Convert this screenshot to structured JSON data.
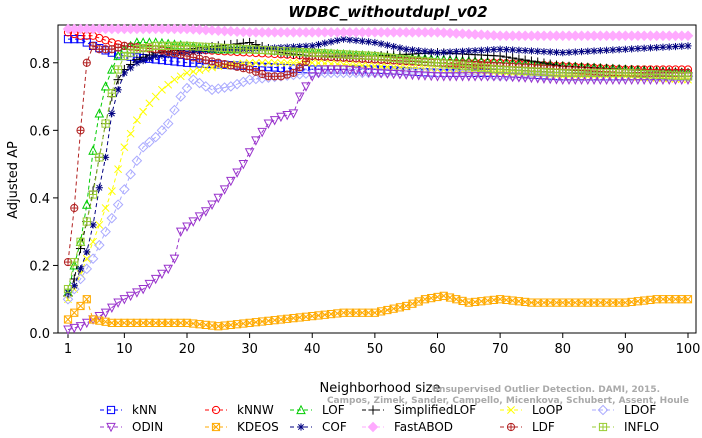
{
  "chart_data": {
    "type": "line",
    "title": "WDBC_withoutdupl_v02",
    "xlabel": "Neighborhood size",
    "ylabel": "Adjusted AP",
    "xlim": [
      1,
      100
    ],
    "ylim": [
      0,
      0.9
    ],
    "xticks": [
      1,
      10,
      20,
      30,
      40,
      50,
      60,
      70,
      80,
      90,
      100
    ],
    "yticks": [
      0.0,
      0.2,
      0.4,
      0.6,
      0.8
    ],
    "ytick_labels": [
      "0.0",
      "0.2",
      "0.4",
      "0.6",
      "0.8"
    ],
    "grid": false,
    "legend_position": "bottom",
    "watermark": [
      "Unsupervised Outlier Detection. DAMI, 2015.",
      "Campos, Zimek, Sander, Campello, Micenkova, Schubert, Assent, Houle"
    ],
    "series": [
      {
        "name": "kNN",
        "color": "#0000ff",
        "marker": "square",
        "dash": "4,3",
        "points": [
          [
            1,
            0.87
          ],
          [
            3,
            0.87
          ],
          [
            5,
            0.85
          ],
          [
            8,
            0.83
          ],
          [
            10,
            0.82
          ],
          [
            15,
            0.81
          ],
          [
            20,
            0.8
          ],
          [
            30,
            0.79
          ],
          [
            40,
            0.78
          ],
          [
            50,
            0.78
          ],
          [
            60,
            0.77
          ],
          [
            70,
            0.77
          ],
          [
            80,
            0.76
          ],
          [
            90,
            0.76
          ],
          [
            100,
            0.76
          ]
        ]
      },
      {
        "name": "kNNW",
        "color": "#ff0000",
        "marker": "circle",
        "dash": "4,3",
        "points": [
          [
            1,
            0.89
          ],
          [
            3,
            0.88
          ],
          [
            5,
            0.88
          ],
          [
            8,
            0.86
          ],
          [
            10,
            0.85
          ],
          [
            15,
            0.84
          ],
          [
            20,
            0.84
          ],
          [
            30,
            0.83
          ],
          [
            40,
            0.82
          ],
          [
            50,
            0.81
          ],
          [
            60,
            0.8
          ],
          [
            70,
            0.8
          ],
          [
            80,
            0.79
          ],
          [
            90,
            0.78
          ],
          [
            100,
            0.78
          ]
        ]
      },
      {
        "name": "LOF",
        "color": "#00cc00",
        "marker": "triangle",
        "dash": "4,3",
        "points": [
          [
            1,
            0.12
          ],
          [
            2,
            0.2
          ],
          [
            3,
            0.27
          ],
          [
            4,
            0.38
          ],
          [
            5,
            0.54
          ],
          [
            6,
            0.65
          ],
          [
            7,
            0.73
          ],
          [
            8,
            0.78
          ],
          [
            9,
            0.82
          ],
          [
            10,
            0.84
          ],
          [
            12,
            0.86
          ],
          [
            15,
            0.86
          ],
          [
            20,
            0.85
          ],
          [
            25,
            0.84
          ],
          [
            30,
            0.84
          ],
          [
            40,
            0.83
          ],
          [
            50,
            0.82
          ],
          [
            60,
            0.81
          ],
          [
            70,
            0.8
          ],
          [
            80,
            0.79
          ],
          [
            90,
            0.78
          ],
          [
            100,
            0.77
          ]
        ]
      },
      {
        "name": "SimplifiedLOF",
        "color": "#000000",
        "marker": "plus",
        "dash": "4,3",
        "points": [
          [
            1,
            0.11
          ],
          [
            2,
            0.16
          ],
          [
            3,
            0.25
          ],
          [
            4,
            0.33
          ],
          [
            5,
            0.42
          ],
          [
            6,
            0.52
          ],
          [
            7,
            0.62
          ],
          [
            8,
            0.7
          ],
          [
            9,
            0.75
          ],
          [
            10,
            0.78
          ],
          [
            12,
            0.81
          ],
          [
            15,
            0.83
          ],
          [
            20,
            0.84
          ],
          [
            25,
            0.85
          ],
          [
            30,
            0.86
          ],
          [
            35,
            0.83
          ],
          [
            40,
            0.82
          ],
          [
            50,
            0.82
          ],
          [
            60,
            0.83
          ],
          [
            70,
            0.82
          ],
          [
            80,
            0.79
          ],
          [
            90,
            0.78
          ],
          [
            100,
            0.77
          ]
        ]
      },
      {
        "name": "LoOP",
        "color": "#ffff00",
        "marker": "x",
        "dash": "4,3",
        "points": [
          [
            1,
            0.1
          ],
          [
            2,
            0.13
          ],
          [
            4,
            0.22
          ],
          [
            6,
            0.32
          ],
          [
            8,
            0.42
          ],
          [
            10,
            0.55
          ],
          [
            12,
            0.63
          ],
          [
            14,
            0.68
          ],
          [
            16,
            0.72
          ],
          [
            18,
            0.75
          ],
          [
            20,
            0.77
          ],
          [
            25,
            0.79
          ],
          [
            30,
            0.8
          ],
          [
            40,
            0.8
          ],
          [
            50,
            0.79
          ],
          [
            60,
            0.78
          ],
          [
            70,
            0.77
          ],
          [
            80,
            0.76
          ],
          [
            90,
            0.76
          ],
          [
            100,
            0.75
          ]
        ]
      },
      {
        "name": "LDOF",
        "color": "#aaaaff",
        "marker": "diamond",
        "dash": "4,3",
        "points": [
          [
            1,
            0.1
          ],
          [
            3,
            0.16
          ],
          [
            5,
            0.22
          ],
          [
            7,
            0.3
          ],
          [
            9,
            0.38
          ],
          [
            11,
            0.47
          ],
          [
            13,
            0.55
          ],
          [
            15,
            0.58
          ],
          [
            17,
            0.62
          ],
          [
            19,
            0.7
          ],
          [
            21,
            0.75
          ],
          [
            24,
            0.72
          ],
          [
            27,
            0.73
          ],
          [
            30,
            0.75
          ],
          [
            35,
            0.76
          ],
          [
            40,
            0.77
          ],
          [
            50,
            0.77
          ],
          [
            60,
            0.77
          ],
          [
            70,
            0.76
          ],
          [
            80,
            0.76
          ],
          [
            90,
            0.76
          ],
          [
            100,
            0.76
          ]
        ]
      },
      {
        "name": "ODIN",
        "color": "#9933cc",
        "marker": "triangle-down",
        "dash": "4,3",
        "points": [
          [
            1,
            0.01
          ],
          [
            3,
            0.02
          ],
          [
            5,
            0.04
          ],
          [
            7,
            0.06
          ],
          [
            9,
            0.09
          ],
          [
            11,
            0.11
          ],
          [
            13,
            0.13
          ],
          [
            15,
            0.16
          ],
          [
            17,
            0.19
          ],
          [
            18,
            0.22
          ],
          [
            19,
            0.3
          ],
          [
            21,
            0.33
          ],
          [
            23,
            0.36
          ],
          [
            25,
            0.4
          ],
          [
            27,
            0.45
          ],
          [
            29,
            0.5
          ],
          [
            31,
            0.57
          ],
          [
            33,
            0.62
          ],
          [
            35,
            0.64
          ],
          [
            37,
            0.65
          ],
          [
            38,
            0.7
          ],
          [
            40,
            0.76
          ],
          [
            42,
            0.78
          ],
          [
            45,
            0.78
          ],
          [
            50,
            0.77
          ],
          [
            60,
            0.76
          ],
          [
            70,
            0.76
          ],
          [
            80,
            0.75
          ],
          [
            90,
            0.75
          ],
          [
            100,
            0.75
          ]
        ]
      },
      {
        "name": "KDEOS",
        "color": "#ffaa00",
        "marker": "square-x",
        "dash": "4,3",
        "points": [
          [
            1,
            0.04
          ],
          [
            3,
            0.08
          ],
          [
            4,
            0.1
          ],
          [
            5,
            0.04
          ],
          [
            8,
            0.03
          ],
          [
            10,
            0.03
          ],
          [
            15,
            0.03
          ],
          [
            20,
            0.03
          ],
          [
            25,
            0.02
          ],
          [
            30,
            0.03
          ],
          [
            35,
            0.04
          ],
          [
            40,
            0.05
          ],
          [
            45,
            0.06
          ],
          [
            50,
            0.06
          ],
          [
            55,
            0.08
          ],
          [
            58,
            0.1
          ],
          [
            61,
            0.11
          ],
          [
            63,
            0.1
          ],
          [
            65,
            0.09
          ],
          [
            70,
            0.1
          ],
          [
            75,
            0.09
          ],
          [
            80,
            0.09
          ],
          [
            85,
            0.09
          ],
          [
            90,
            0.09
          ],
          [
            95,
            0.1
          ],
          [
            100,
            0.1
          ]
        ]
      },
      {
        "name": "COF",
        "color": "#000080",
        "marker": "asterisk",
        "dash": "4,3",
        "points": [
          [
            1,
            0.12
          ],
          [
            2,
            0.14
          ],
          [
            3,
            0.19
          ],
          [
            4,
            0.24
          ],
          [
            5,
            0.32
          ],
          [
            6,
            0.43
          ],
          [
            7,
            0.52
          ],
          [
            8,
            0.65
          ],
          [
            9,
            0.72
          ],
          [
            10,
            0.77
          ],
          [
            12,
            0.8
          ],
          [
            15,
            0.82
          ],
          [
            20,
            0.83
          ],
          [
            25,
            0.84
          ],
          [
            30,
            0.84
          ],
          [
            40,
            0.85
          ],
          [
            45,
            0.87
          ],
          [
            50,
            0.86
          ],
          [
            55,
            0.84
          ],
          [
            60,
            0.83
          ],
          [
            70,
            0.84
          ],
          [
            80,
            0.83
          ],
          [
            90,
            0.84
          ],
          [
            100,
            0.85
          ]
        ]
      },
      {
        "name": "FastABOD",
        "color": "#ffaaff",
        "marker": "diamond-filled",
        "dash": "4,3",
        "points": [
          [
            1,
            0.9
          ],
          [
            10,
            0.9
          ],
          [
            20,
            0.9
          ],
          [
            30,
            0.89
          ],
          [
            40,
            0.89
          ],
          [
            50,
            0.89
          ],
          [
            60,
            0.89
          ],
          [
            70,
            0.88
          ],
          [
            80,
            0.88
          ],
          [
            90,
            0.88
          ],
          [
            100,
            0.88
          ]
        ]
      },
      {
        "name": "LDF",
        "color": "#b22222",
        "marker": "circle-plus",
        "dash": "4,3",
        "points": [
          [
            1,
            0.21
          ],
          [
            2,
            0.37
          ],
          [
            3,
            0.6
          ],
          [
            4,
            0.8
          ],
          [
            5,
            0.85
          ],
          [
            6,
            0.84
          ],
          [
            8,
            0.84
          ],
          [
            10,
            0.85
          ],
          [
            15,
            0.84
          ],
          [
            20,
            0.82
          ],
          [
            25,
            0.8
          ],
          [
            30,
            0.78
          ],
          [
            33,
            0.76
          ],
          [
            35,
            0.76
          ],
          [
            37,
            0.77
          ],
          [
            40,
            0.82
          ],
          [
            50,
            0.81
          ],
          [
            60,
            0.8
          ],
          [
            70,
            0.79
          ],
          [
            80,
            0.78
          ],
          [
            90,
            0.77
          ],
          [
            100,
            0.77
          ]
        ]
      },
      {
        "name": "INFLO",
        "color": "#99cc33",
        "marker": "square-cross",
        "dash": "4,3",
        "points": [
          [
            1,
            0.13
          ],
          [
            2,
            0.21
          ],
          [
            3,
            0.27
          ],
          [
            4,
            0.33
          ],
          [
            5,
            0.41
          ],
          [
            6,
            0.52
          ],
          [
            7,
            0.62
          ],
          [
            8,
            0.71
          ],
          [
            9,
            0.78
          ],
          [
            10,
            0.82
          ],
          [
            12,
            0.84
          ],
          [
            15,
            0.85
          ],
          [
            20,
            0.85
          ],
          [
            30,
            0.84
          ],
          [
            40,
            0.83
          ],
          [
            50,
            0.82
          ],
          [
            60,
            0.8
          ],
          [
            70,
            0.78
          ],
          [
            80,
            0.77
          ],
          [
            90,
            0.77
          ],
          [
            100,
            0.76
          ]
        ]
      }
    ]
  }
}
